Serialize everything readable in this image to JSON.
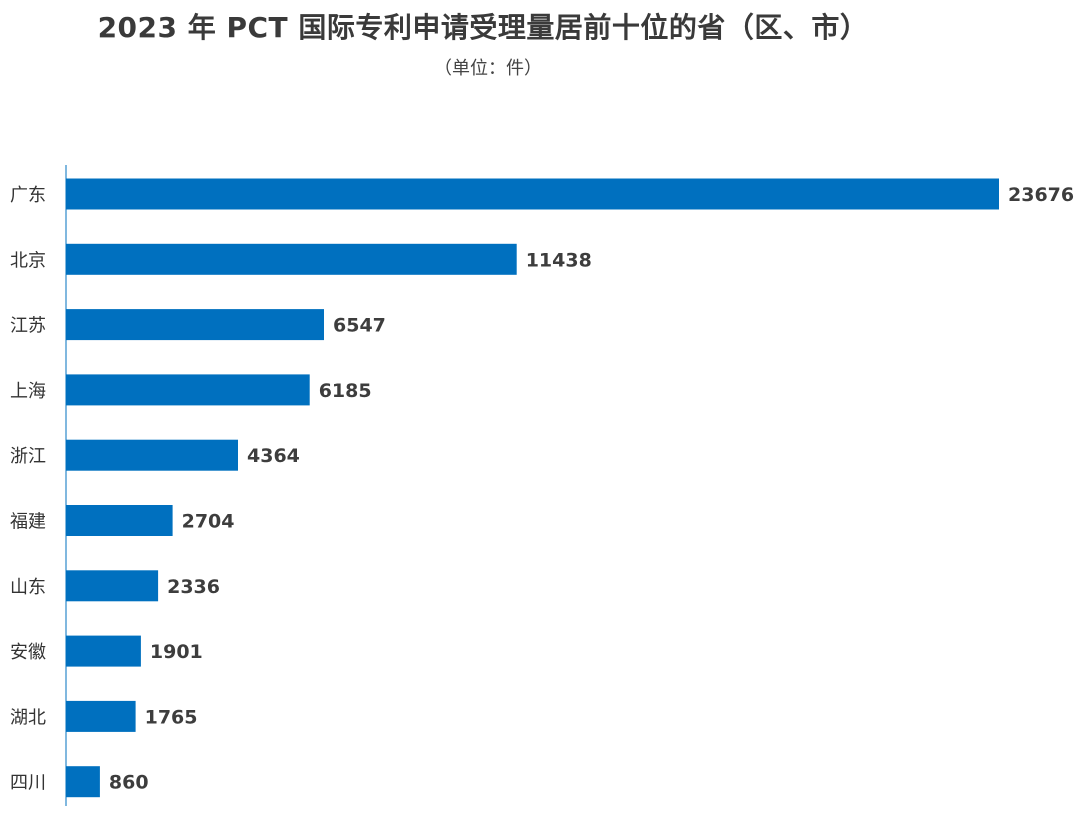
{
  "title": "2023 年 PCT 国际专利申请受理量居前十位的省（区、市）",
  "subtitle": "（单位：件）",
  "colors": {
    "bar": "#0070bf",
    "axis": "#0070bf"
  },
  "chart_data": {
    "type": "bar",
    "orientation": "horizontal",
    "title": "2023 年 PCT 国际专利申请受理量居前十位的省（区、市）",
    "subtitle": "（单位：件）",
    "categories": [
      "广东",
      "北京",
      "江苏",
      "上海",
      "浙江",
      "福建",
      "山东",
      "安徽",
      "湖北",
      "四川"
    ],
    "values": [
      23676,
      11438,
      6547,
      6185,
      4364,
      2704,
      2336,
      1901,
      1765,
      860
    ],
    "xlim": [
      0,
      23676
    ],
    "xlabel": "",
    "ylabel": "",
    "grid": false,
    "legend": "none",
    "data_labels": true
  }
}
